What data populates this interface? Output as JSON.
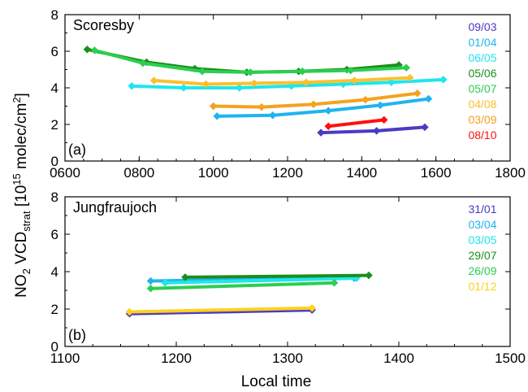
{
  "figure": {
    "xlabel": "Local time",
    "ylabel_main": "NO",
    "ylabel_sub": "2",
    "ylabel_mid": " VCD",
    "ylabel_strat": "strat",
    "ylabel_unit": " [10",
    "ylabel_exp": "15",
    "ylabel_unit2": " molec/cm",
    "ylabel_exp2": "2",
    "ylabel_close": "]"
  },
  "chart_data": [
    {
      "type": "line",
      "title": "Scoresby",
      "panel_label": "(a)",
      "xlim": [
        600,
        1800
      ],
      "ylim": [
        0,
        8
      ],
      "xticks": [
        "0600",
        "0800",
        "1000",
        "1200",
        "1400",
        "1600",
        "1800"
      ],
      "xtick_values": [
        600,
        800,
        1000,
        1200,
        1400,
        1600,
        1800
      ],
      "yticks": [
        "0",
        "2",
        "4",
        "6",
        "8"
      ],
      "ytick_values": [
        0,
        2,
        4,
        6,
        8
      ],
      "legend_position": "right",
      "series": [
        {
          "name": "09/03",
          "color": "#4b3bc4",
          "x": [
            1290,
            1440,
            1570
          ],
          "y": [
            1.55,
            1.65,
            1.85
          ]
        },
        {
          "name": "01/04",
          "color": "#1fb4f0",
          "x": [
            1010,
            1160,
            1310,
            1450,
            1580
          ],
          "y": [
            2.45,
            2.5,
            2.75,
            3.05,
            3.4
          ]
        },
        {
          "name": "06/05",
          "color": "#1ee6ee",
          "x": [
            780,
            920,
            1070,
            1210,
            1350,
            1480,
            1620
          ],
          "y": [
            4.1,
            4.0,
            4.0,
            4.1,
            4.2,
            4.3,
            4.45
          ]
        },
        {
          "name": "05/06",
          "color": "#1a8f1a",
          "x": [
            660,
            820,
            950,
            1090,
            1230,
            1360,
            1500
          ],
          "y": [
            6.1,
            5.4,
            5.05,
            4.85,
            4.9,
            5.0,
            5.25
          ]
        },
        {
          "name": "05/07",
          "color": "#2cce50",
          "x": [
            680,
            810,
            970,
            1100,
            1240,
            1370,
            1520
          ],
          "y": [
            6.05,
            5.35,
            4.9,
            4.85,
            4.9,
            4.95,
            5.1
          ]
        },
        {
          "name": "04/08",
          "color": "#fbc02d",
          "x": [
            840,
            980,
            1110,
            1250,
            1380,
            1530
          ],
          "y": [
            4.4,
            4.2,
            4.25,
            4.3,
            4.4,
            4.55
          ]
        },
        {
          "name": "03/09",
          "color": "#f4a21e",
          "x": [
            1000,
            1130,
            1270,
            1410,
            1550
          ],
          "y": [
            3.0,
            2.95,
            3.1,
            3.35,
            3.7
          ]
        },
        {
          "name": "08/10",
          "color": "#ff1010",
          "x": [
            1310,
            1460
          ],
          "y": [
            1.9,
            2.25
          ]
        }
      ]
    },
    {
      "type": "line",
      "title": "Jungfraujoch",
      "panel_label": "(b)",
      "xlim": [
        1100,
        1500
      ],
      "ylim": [
        0,
        8
      ],
      "xticks": [
        "1100",
        "1200",
        "1300",
        "1400",
        "1500"
      ],
      "xtick_values": [
        1100,
        1200,
        1300,
        1400,
        1500
      ],
      "yticks": [
        "0",
        "2",
        "4",
        "6",
        "8"
      ],
      "ytick_values": [
        0,
        2,
        4,
        6,
        8
      ],
      "legend_position": "right",
      "series": [
        {
          "name": "31/01",
          "color": "#4b3bc4",
          "x": [
            1158,
            1322
          ],
          "y": [
            1.75,
            1.95
          ]
        },
        {
          "name": "03/04",
          "color": "#1fb4f0",
          "x": [
            1177,
            1360
          ],
          "y": [
            3.5,
            3.65
          ]
        },
        {
          "name": "03/05",
          "color": "#1ee6ee",
          "x": [
            1190,
            1362
          ],
          "y": [
            3.4,
            3.65
          ]
        },
        {
          "name": "29/07",
          "color": "#1a8f1a",
          "x": [
            1208,
            1373
          ],
          "y": [
            3.7,
            3.8
          ]
        },
        {
          "name": "26/09",
          "color": "#2cce50",
          "x": [
            1177,
            1342
          ],
          "y": [
            3.1,
            3.4
          ]
        },
        {
          "name": "01/12",
          "color": "#ffd21a",
          "x": [
            1158,
            1322
          ],
          "y": [
            1.85,
            2.05
          ]
        }
      ]
    }
  ]
}
